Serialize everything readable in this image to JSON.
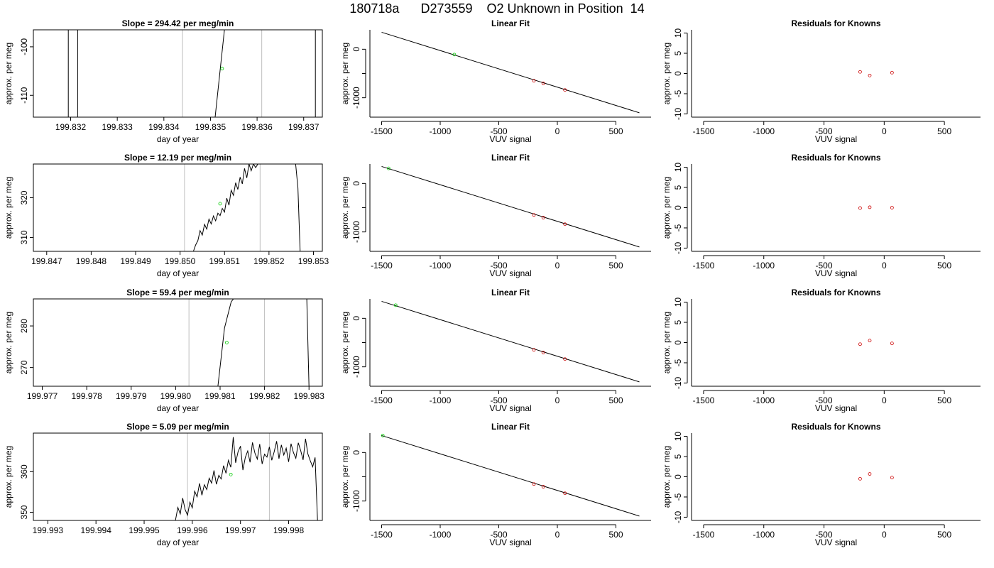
{
  "page_title": "180718a      D273559    O2 Unknown in Position  14",
  "chart_data": [
    {
      "type": "line",
      "title": "Slope =  294.42  per meg/min",
      "xlabel": "day of year",
      "ylabel": "approx. per meg",
      "xlim": [
        199.8312,
        199.8374
      ],
      "ylim": [
        -114.5,
        -96.5
      ],
      "xticks": [
        199.832,
        199.833,
        199.834,
        199.835,
        199.836,
        199.837
      ],
      "xtick_labels": [
        "199.832",
        "199.833",
        "199.834",
        "199.835",
        "199.836",
        "199.837"
      ],
      "yticks": [
        -110,
        -100
      ],
      "ytick_labels": [
        "-110",
        "-100"
      ],
      "vlines": [
        199.8344,
        199.8361
      ],
      "series": [
        {
          "x": [
            199.83195,
            199.83195
          ],
          "y": [
            -96.5,
            -114.5
          ]
        },
        {
          "x": [
            199.83215,
            199.83215
          ],
          "y": [
            -96.5,
            -114.5
          ]
        },
        {
          "x": [
            199.8351,
            199.8353
          ],
          "y": [
            -114.5,
            -96.5
          ]
        },
        {
          "x": [
            199.83725,
            199.83725
          ],
          "y": [
            -96.5,
            -114.5
          ]
        }
      ],
      "unknown_point": {
        "x": 199.83525,
        "y": -104.5
      }
    },
    {
      "type": "scatter",
      "title": "Linear Fit",
      "xlabel": "VUV signal",
      "ylabel": "approx. per meg",
      "xlim": [
        -1600,
        800
      ],
      "ylim": [
        -1400,
        400
      ],
      "xticks": [
        -1500,
        -1000,
        -500,
        0,
        500
      ],
      "xtick_labels": [
        "-1500",
        "-1000",
        "-500",
        "0",
        "500"
      ],
      "yticks": [
        -1000,
        -500,
        0
      ],
      "ytick_labels": [
        "-1000",
        "",
        "0"
      ],
      "fit_line": {
        "x": [
          -1500,
          700
        ],
        "y": [
          350,
          -1310
        ]
      },
      "knowns": {
        "x": [
          -200,
          -120,
          65
        ],
        "y": [
          -650,
          -705,
          -840
        ]
      },
      "unknown_point": {
        "x": -880,
        "y": -110
      }
    },
    {
      "type": "scatter",
      "title": "Residuals for Knowns",
      "xlabel": "VUV signal",
      "ylabel": "approx. per meg",
      "xlim": [
        -1600,
        800
      ],
      "ylim": [
        -10.8,
        10.8
      ],
      "xticks": [
        -1500,
        -1000,
        -500,
        0,
        500
      ],
      "xtick_labels": [
        "-1500",
        "-1000",
        "-500",
        "0",
        "500"
      ],
      "yticks": [
        -10,
        -5,
        0,
        5,
        10
      ],
      "ytick_labels": [
        "-10",
        "-5",
        "0",
        "5",
        "10"
      ],
      "residuals": {
        "x": [
          -200,
          -120,
          65
        ],
        "y": [
          0.4,
          -0.5,
          0.2
        ]
      }
    },
    {
      "type": "line",
      "title": "Slope =  12.19  per meg/min",
      "xlabel": "day of year",
      "ylabel": "approx. per meg",
      "xlim": [
        199.8467,
        199.8532
      ],
      "ylim": [
        306.5,
        328.5
      ],
      "xticks": [
        199.847,
        199.848,
        199.849,
        199.85,
        199.851,
        199.852,
        199.853
      ],
      "xtick_labels": [
        "199.847",
        "199.848",
        "199.849",
        "199.850",
        "199.851",
        "199.852",
        "199.853"
      ],
      "yticks": [
        310,
        320
      ],
      "ytick_labels": [
        "310",
        "320"
      ],
      "vlines": [
        199.8501,
        199.8518
      ],
      "series": [
        {
          "x": [
            199.8503,
            199.85035,
            199.8504,
            199.85045,
            199.8505,
            199.85055,
            199.8506,
            199.85065,
            199.8507,
            199.85075,
            199.8508,
            199.85085,
            199.8509,
            199.85095,
            199.851,
            199.85105,
            199.8511,
            199.85115,
            199.8512,
            199.85125,
            199.8513,
            199.85135,
            199.8514,
            199.85145,
            199.8515,
            199.85155,
            199.8516,
            199.85165,
            199.8517,
            199.85175,
            199.8518,
            199.85185,
            199.8519,
            199.85195,
            199.852,
            199.85205,
            199.8521,
            199.85215,
            199.8522,
            199.85225,
            199.8523,
            199.85235,
            199.8524,
            199.85245,
            199.8525,
            199.85255,
            199.8526,
            199.85265,
            199.8527
          ],
          "y": [
            306.5,
            308.1,
            309.2,
            311.7,
            310.6,
            313.3,
            312.1,
            314.6,
            313.4,
            315.4,
            314.2,
            316.1,
            315.5,
            317.3,
            316.4,
            319.9,
            318.1,
            321.9,
            320.6,
            323.8,
            322.1,
            325.2,
            323.5,
            327.4,
            325.0,
            328.5,
            326.8,
            328.5,
            327.6,
            328.5,
            328.5,
            328.5,
            328.5,
            328.5,
            328.5,
            328.5,
            328.5,
            328.5,
            328.5,
            328.5,
            328.5,
            328.5,
            328.5,
            328.5,
            328.5,
            328.5,
            328.5,
            322.5,
            306.5
          ]
        }
      ],
      "unknown_point": {
        "x": 199.8509,
        "y": 318.5
      }
    },
    {
      "type": "scatter",
      "title": "Linear Fit",
      "xlabel": "VUV signal",
      "ylabel": "approx. per meg",
      "xlim": [
        -1600,
        800
      ],
      "ylim": [
        -1400,
        400
      ],
      "xticks": [
        -1500,
        -1000,
        -500,
        0,
        500
      ],
      "xtick_labels": [
        "-1500",
        "-1000",
        "-500",
        "0",
        "500"
      ],
      "yticks": [
        -1000,
        -500,
        0
      ],
      "ytick_labels": [
        "-1000",
        "",
        "0"
      ],
      "fit_line": {
        "x": [
          -1500,
          700
        ],
        "y": [
          350,
          -1310
        ]
      },
      "knowns": {
        "x": [
          -200,
          -120,
          65
        ],
        "y": [
          -650,
          -705,
          -840
        ]
      },
      "unknown_point": {
        "x": -1440,
        "y": 310
      }
    },
    {
      "type": "scatter",
      "title": "Residuals for Knowns",
      "xlabel": "VUV signal",
      "ylabel": "approx. per meg",
      "xlim": [
        -1600,
        800
      ],
      "ylim": [
        -10.8,
        10.8
      ],
      "xticks": [
        -1500,
        -1000,
        -500,
        0,
        500
      ],
      "xtick_labels": [
        "-1500",
        "-1000",
        "-500",
        "0",
        "500"
      ],
      "yticks": [
        -10,
        -5,
        0,
        5,
        10
      ],
      "ytick_labels": [
        "-10",
        "-5",
        "0",
        "5",
        "10"
      ],
      "residuals": {
        "x": [
          -200,
          -120,
          65
        ],
        "y": [
          -0.1,
          0.1,
          0.0
        ]
      }
    },
    {
      "type": "line",
      "title": "Slope =  59.4  per meg/min",
      "xlabel": "day of year",
      "ylabel": "approx. per meg",
      "xlim": [
        199.9768,
        199.9833
      ],
      "ylim": [
        265.5,
        286.5
      ],
      "xticks": [
        199.977,
        199.978,
        199.979,
        199.98,
        199.981,
        199.982,
        199.983
      ],
      "xtick_labels": [
        "199.977",
        "199.978",
        "199.979",
        "199.980",
        "199.981",
        "199.982",
        "199.983"
      ],
      "yticks": [
        270,
        280
      ],
      "ytick_labels": [
        "270",
        "280"
      ],
      "vlines": [
        199.9803,
        199.982
      ],
      "series": [
        {
          "x": [
            199.98095,
            199.9811,
            199.98125,
            199.9813
          ],
          "y": [
            265.5,
            279.5,
            285.8,
            286.5
          ]
        },
        {
          "x": [
            199.98295,
            199.983
          ],
          "y": [
            286.5,
            265.5
          ]
        }
      ],
      "unknown_point": {
        "x": 199.98115,
        "y": 276
      }
    },
    {
      "type": "scatter",
      "title": "Linear Fit",
      "xlabel": "VUV signal",
      "ylabel": "approx. per meg",
      "xlim": [
        -1600,
        800
      ],
      "ylim": [
        -1400,
        400
      ],
      "xticks": [
        -1500,
        -1000,
        -500,
        0,
        500
      ],
      "xtick_labels": [
        "-1500",
        "-1000",
        "-500",
        "0",
        "500"
      ],
      "yticks": [
        -1000,
        -500,
        0
      ],
      "ytick_labels": [
        "-1000",
        "",
        "0"
      ],
      "fit_line": {
        "x": [
          -1500,
          700
        ],
        "y": [
          350,
          -1310
        ]
      },
      "knowns": {
        "x": [
          -200,
          -120,
          65
        ],
        "y": [
          -650,
          -705,
          -840
        ]
      },
      "unknown_point": {
        "x": -1380,
        "y": 270
      }
    },
    {
      "type": "scatter",
      "title": "Residuals for Knowns",
      "xlabel": "VUV signal",
      "ylabel": "approx. per meg",
      "xlim": [
        -1600,
        800
      ],
      "ylim": [
        -10.8,
        10.8
      ],
      "xticks": [
        -1500,
        -1000,
        -500,
        0,
        500
      ],
      "xtick_labels": [
        "-1500",
        "-1000",
        "-500",
        "0",
        "500"
      ],
      "yticks": [
        -10,
        -5,
        0,
        5,
        10
      ],
      "ytick_labels": [
        "-10",
        "-5",
        "0",
        "5",
        "10"
      ],
      "residuals": {
        "x": [
          -200,
          -120,
          65
        ],
        "y": [
          -0.4,
          0.5,
          -0.2
        ]
      }
    },
    {
      "type": "line",
      "title": "Slope =  5.09  per meg/min",
      "xlabel": "day of year",
      "ylabel": "approx. per meg",
      "xlim": [
        199.9927,
        199.9987
      ],
      "ylim": [
        348,
        369.5
      ],
      "xticks": [
        199.993,
        199.994,
        199.995,
        199.996,
        199.997,
        199.998
      ],
      "xtick_labels": [
        "199.993",
        "199.994",
        "199.995",
        "199.996",
        "199.997",
        "199.998"
      ],
      "yticks": [
        350,
        360
      ],
      "ytick_labels": [
        "350",
        "360"
      ],
      "vlines": [
        199.9959,
        199.9976
      ],
      "series": [
        {
          "x": [
            199.99565,
            199.9957,
            199.99575,
            199.9958,
            199.99585,
            199.9959,
            199.99595,
            199.996,
            199.99605,
            199.9961,
            199.99615,
            199.9962,
            199.99625,
            199.9963,
            199.99635,
            199.9964,
            199.99645,
            199.9965,
            199.99655,
            199.9966,
            199.99665,
            199.9967,
            199.99675,
            199.9968,
            199.99685,
            199.9969,
            199.99695,
            199.997,
            199.99705,
            199.9971,
            199.99715,
            199.9972,
            199.99725,
            199.9973,
            199.99735,
            199.9974,
            199.99745,
            199.9975,
            199.99755,
            199.9976,
            199.99765,
            199.9977,
            199.99775,
            199.9978,
            199.99785,
            199.9979,
            199.99795,
            199.998,
            199.99805,
            199.9981,
            199.99815,
            199.9982,
            199.99825,
            199.9983,
            199.99835,
            199.9984,
            199.99845,
            199.9985,
            199.99855,
            199.9986
          ],
          "y": [
            348,
            351.2,
            349.6,
            353.5,
            350.7,
            349.3,
            352.5,
            351.1,
            355.2,
            353.8,
            357.1,
            354.2,
            356.8,
            355.6,
            358.4,
            357.2,
            360.3,
            356.9,
            359.1,
            358.2,
            361.5,
            359.6,
            362.8,
            361.1,
            368.5,
            362.2,
            364.9,
            366.3,
            360.4,
            363.5,
            365.1,
            362.3,
            367.2,
            364.6,
            363.1,
            366.8,
            361.9,
            364.3,
            363.6,
            366.1,
            362.8,
            364.9,
            367.5,
            363.2,
            366.6,
            364.1,
            365.8,
            362.4,
            366.9,
            364.7,
            363.3,
            367.1,
            365.2,
            362.9,
            368.1,
            364.4,
            362.7,
            361.2,
            363.5,
            348
          ]
        }
      ],
      "unknown_point": {
        "x": 199.9968,
        "y": 359.3
      }
    },
    {
      "type": "scatter",
      "title": "Linear Fit",
      "xlabel": "VUV signal",
      "ylabel": "approx. per meg",
      "xlim": [
        -1600,
        800
      ],
      "ylim": [
        -1400,
        400
      ],
      "xticks": [
        -1500,
        -1000,
        -500,
        0,
        500
      ],
      "xtick_labels": [
        "-1500",
        "-1000",
        "-500",
        "0",
        "500"
      ],
      "yticks": [
        -1000,
        -500,
        0
      ],
      "ytick_labels": [
        "-1000",
        "",
        "0"
      ],
      "fit_line": {
        "x": [
          -1500,
          700
        ],
        "y": [
          350,
          -1310
        ]
      },
      "knowns": {
        "x": [
          -200,
          -120,
          65
        ],
        "y": [
          -650,
          -705,
          -840
        ]
      },
      "unknown_point": {
        "x": -1490,
        "y": 350
      }
    },
    {
      "type": "scatter",
      "title": "Residuals for Knowns",
      "xlabel": "VUV signal",
      "ylabel": "approx. per meg",
      "xlim": [
        -1600,
        800
      ],
      "ylim": [
        -10.8,
        10.8
      ],
      "xticks": [
        -1500,
        -1000,
        -500,
        0,
        500
      ],
      "xtick_labels": [
        "-1500",
        "-1000",
        "-500",
        "0",
        "500"
      ],
      "yticks": [
        -10,
        -5,
        0,
        5,
        10
      ],
      "ytick_labels": [
        "-10",
        "-5",
        "0",
        "5",
        "10"
      ],
      "residuals": {
        "x": [
          -200,
          -120,
          65
        ],
        "y": [
          -0.5,
          0.7,
          -0.2
        ]
      }
    }
  ]
}
